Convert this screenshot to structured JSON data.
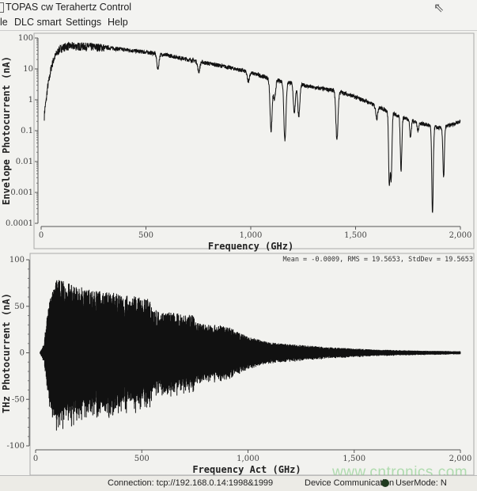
{
  "window": {
    "title": "TOPAS cw Terahertz Control"
  },
  "menu": [
    "le",
    "DLC smart",
    "Settings",
    "Help"
  ],
  "status": {
    "connection": "Connection: tcp://192.168.0.14:1998&1999",
    "device": "Device Communication",
    "device_status_color": "#1f3a1f",
    "usermode": "UserMode: N"
  },
  "watermark": "www.cntronics.com",
  "chart_data": [
    {
      "type": "line",
      "xlabel": "Frequency (GHz)",
      "ylabel": "Envelope Photocurrent (nA)",
      "xlim": [
        0,
        2000
      ],
      "ylim": [
        0.0001,
        100
      ],
      "yscale": "log",
      "xticks": [
        "0",
        "500",
        "1,000",
        "1,500",
        "2,000"
      ],
      "yticks": [
        "0.0001",
        "0.001",
        "0.01",
        "0.1",
        "1",
        "10",
        "100"
      ],
      "grid": false,
      "baseline": [
        [
          15,
          0.3
        ],
        [
          25,
          1
        ],
        [
          40,
          5
        ],
        [
          60,
          20
        ],
        [
          90,
          45
        ],
        [
          120,
          55
        ],
        [
          200,
          55
        ],
        [
          300,
          50
        ],
        [
          400,
          42
        ],
        [
          500,
          35
        ],
        [
          600,
          28
        ],
        [
          700,
          20
        ],
        [
          800,
          15
        ],
        [
          900,
          11
        ],
        [
          1000,
          7.5
        ],
        [
          1100,
          4.5
        ],
        [
          1200,
          3.5
        ],
        [
          1300,
          2.5
        ],
        [
          1400,
          2
        ],
        [
          1500,
          1.2
        ],
        [
          1600,
          0.6
        ],
        [
          1700,
          0.3
        ],
        [
          1800,
          0.18
        ],
        [
          1900,
          0.12
        ],
        [
          1950,
          0.15
        ],
        [
          2000,
          0.2
        ]
      ],
      "dips": [
        [
          557,
          10
        ],
        [
          752,
          8
        ],
        [
          988,
          4
        ],
        [
          1097,
          0.1
        ],
        [
          1113,
          1
        ],
        [
          1163,
          0.05
        ],
        [
          1208,
          0.4
        ],
        [
          1229,
          0.3
        ],
        [
          1411,
          0.05
        ],
        [
          1602,
          0.25
        ],
        [
          1661,
          0.002
        ],
        [
          1670,
          0.003
        ],
        [
          1717,
          0.005
        ],
        [
          1762,
          0.06
        ],
        [
          1797,
          0.1
        ],
        [
          1867,
          0.0002
        ],
        [
          1920,
          0.003
        ]
      ]
    },
    {
      "type": "line",
      "xlabel": "Frequency Act (GHz)",
      "ylabel": "THz Photocurrent (nA)",
      "xlim": [
        0,
        2000
      ],
      "ylim": [
        -100,
        100
      ],
      "xticks": [
        "0",
        "500",
        "1,000",
        "1,500",
        "2,000"
      ],
      "yticks": [
        "-100",
        "-50",
        "0",
        "50",
        "100"
      ],
      "grid": false,
      "annotation": "Mean = -0.0009, RMS = 19.5653, StdDev = 19.5653",
      "amplitude_envelope": [
        [
          20,
          0
        ],
        [
          40,
          10
        ],
        [
          60,
          45
        ],
        [
          100,
          70
        ],
        [
          200,
          62
        ],
        [
          300,
          58
        ],
        [
          400,
          55
        ],
        [
          540,
          50
        ],
        [
          560,
          40
        ],
        [
          740,
          35
        ],
        [
          760,
          28
        ],
        [
          900,
          25
        ],
        [
          1000,
          15
        ],
        [
          1100,
          10
        ],
        [
          1200,
          8
        ],
        [
          1400,
          5
        ],
        [
          1600,
          3
        ],
        [
          1800,
          2
        ],
        [
          2000,
          1.5
        ]
      ]
    }
  ]
}
